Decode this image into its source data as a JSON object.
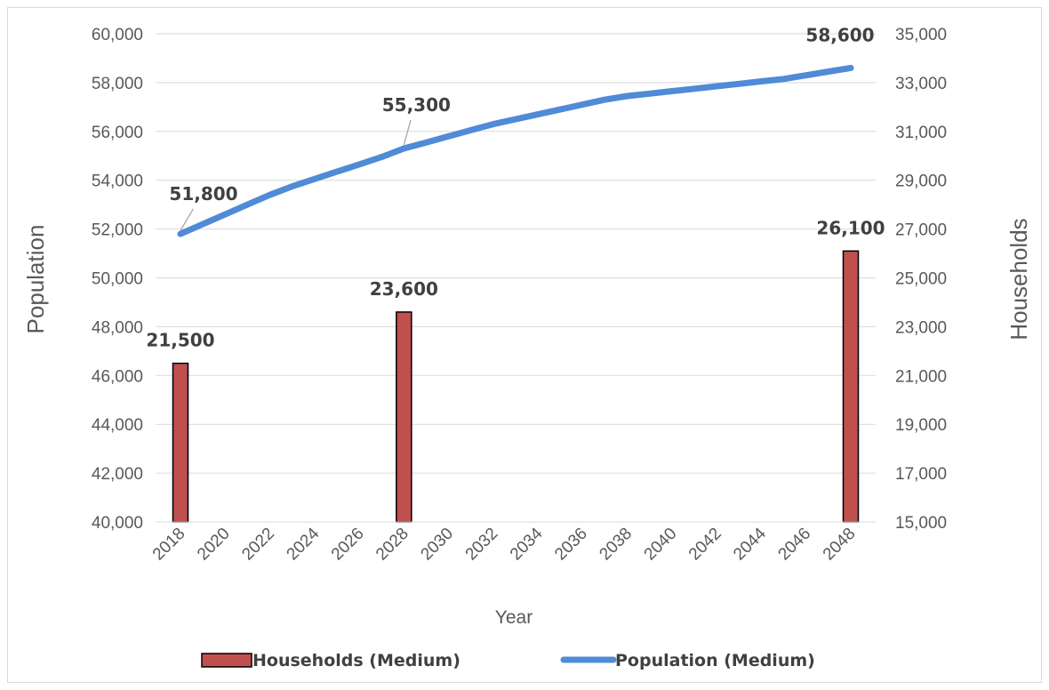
{
  "chart_data": {
    "type": "bar+line",
    "xlabel": "Year",
    "ylabel_left": "Population",
    "ylabel_right": "Households",
    "x_ticks": [
      "2018",
      "2020",
      "2022",
      "2024",
      "2026",
      "2028",
      "2030",
      "2032",
      "2034",
      "2036",
      "2038",
      "2040",
      "2042",
      "2044",
      "2046",
      "2048"
    ],
    "ylim_left": [
      40000,
      60000
    ],
    "yticks_left": [
      "40,000",
      "42,000",
      "44,000",
      "46,000",
      "48,000",
      "50,000",
      "52,000",
      "54,000",
      "56,000",
      "58,000",
      "60,000"
    ],
    "ylim_right": [
      15000,
      35000
    ],
    "yticks_right": [
      "15,000",
      "17,000",
      "19,000",
      "21,000",
      "23,000",
      "25,000",
      "27,000",
      "29,000",
      "31,000",
      "33,000",
      "35,000"
    ],
    "grid": true,
    "legend_position": "bottom",
    "series": [
      {
        "name": "Households (Medium)",
        "kind": "bar",
        "axis": "right",
        "color": "#c0504d",
        "x": [
          2018,
          2028,
          2048
        ],
        "values": [
          21500,
          23600,
          26100
        ],
        "labels": [
          "21,500",
          "23,600",
          "26,100"
        ]
      },
      {
        "name": "Population (Medium)",
        "kind": "line",
        "axis": "left",
        "color": "#4f8bd6",
        "x": [
          2018,
          2019,
          2020,
          2021,
          2022,
          2023,
          2024,
          2025,
          2026,
          2027,
          2028,
          2029,
          2030,
          2031,
          2032,
          2033,
          2034,
          2035,
          2036,
          2037,
          2038,
          2039,
          2040,
          2041,
          2042,
          2043,
          2044,
          2045,
          2046,
          2047,
          2048
        ],
        "values": [
          51800,
          52200,
          52600,
          53000,
          53400,
          53750,
          54050,
          54350,
          54650,
          54950,
          55300,
          55550,
          55800,
          56050,
          56300,
          56500,
          56700,
          56900,
          57100,
          57300,
          57450,
          57550,
          57650,
          57750,
          57850,
          57950,
          58050,
          58150,
          58300,
          58450,
          58600
        ],
        "labels": {
          "2018": "51,800",
          "2028": "55,300",
          "2048": "58,600"
        }
      }
    ]
  }
}
